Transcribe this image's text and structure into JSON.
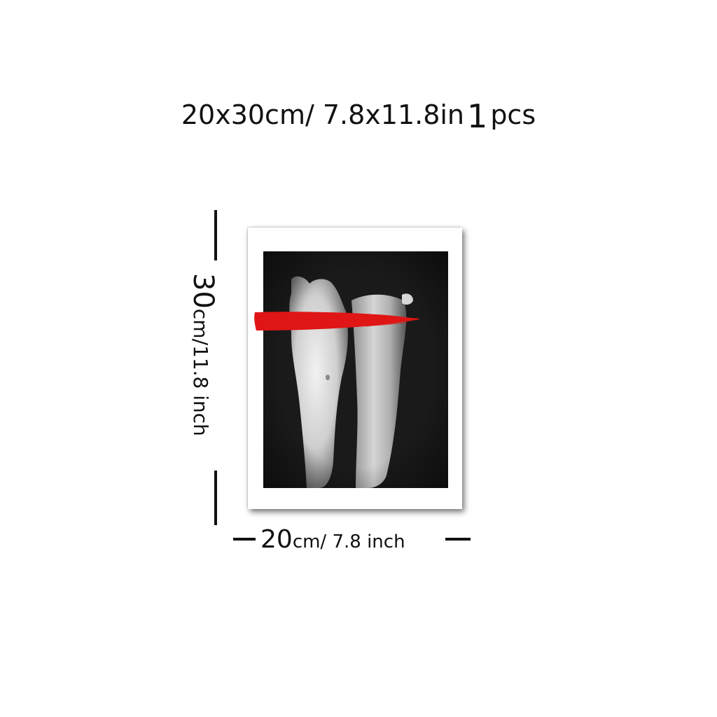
{
  "title": {
    "size_text": "20x30cm/ 7.8x11.8in",
    "quantity": "1",
    "unit": "pcs"
  },
  "height_label": {
    "value": "30",
    "unit_text": "cm/11.8 inch"
  },
  "width_label": {
    "value": "20",
    "unit_text": "cm/ 7.8 inch"
  },
  "colors": {
    "brush": "#e01515",
    "photo_background": "#161616",
    "frame": "#ffffff",
    "text": "#111111"
  }
}
